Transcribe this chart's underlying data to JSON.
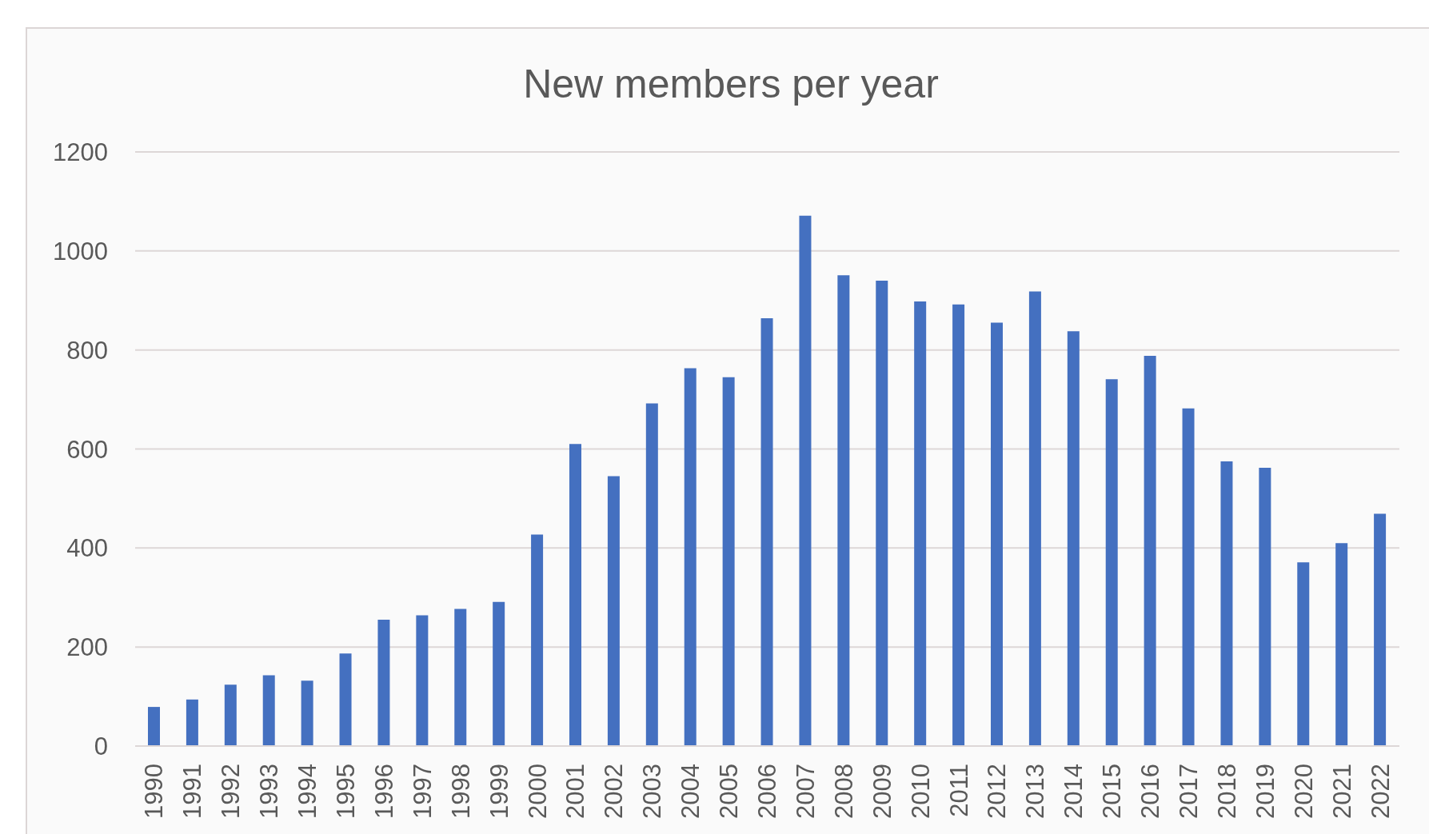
{
  "chart_data": {
    "type": "bar",
    "title": "New members per year",
    "categories": [
      "1990",
      "1991",
      "1992",
      "1993",
      "1994",
      "1995",
      "1996",
      "1997",
      "1998",
      "1999",
      "2000",
      "2001",
      "2002",
      "2003",
      "2004",
      "2005",
      "2006",
      "2007",
      "2008",
      "2009",
      "2010",
      "2011",
      "2012",
      "2013",
      "2014",
      "2015",
      "2016",
      "2017",
      "2018",
      "2019",
      "2020",
      "2021",
      "2022"
    ],
    "values": [
      79,
      94,
      124,
      143,
      132,
      187,
      255,
      264,
      277,
      291,
      427,
      610,
      545,
      692,
      763,
      745,
      864,
      1071,
      951,
      940,
      898,
      892,
      855,
      918,
      838,
      741,
      788,
      682,
      575,
      562,
      371,
      410,
      469
    ],
    "color": "#4470c0",
    "ylim": [
      0,
      1200
    ],
    "yticks": [
      0,
      200,
      400,
      600,
      800,
      1000,
      1200
    ],
    "grid": "y"
  }
}
